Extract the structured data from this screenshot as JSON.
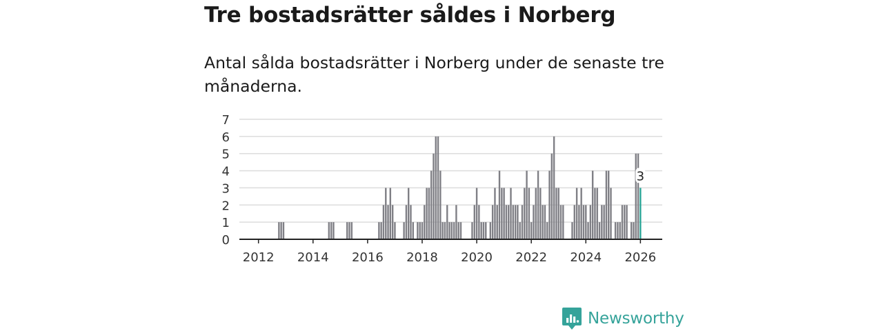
{
  "header": {
    "title": "Tre bostadsrätter såldes i Norberg",
    "subtitle": "Antal sålda bostadsrätter i Norberg under de senaste tre månaderna."
  },
  "brand": {
    "name": "Newsworthy"
  },
  "colors": {
    "bar": "#7f7f85",
    "highlight": "#2aa597",
    "grid": "#dcdcdc",
    "axis": "#222222",
    "brand": "#35a39a"
  },
  "chart_data": {
    "type": "bar",
    "title": "Tre bostadsrätter såldes i Norberg",
    "subtitle": "Antal sålda bostadsrätter i Norberg under de senaste tre månaderna.",
    "xlabel": "",
    "ylabel": "",
    "x_unit": "rolling 3-month window, ending month",
    "ylim": [
      0,
      7
    ],
    "xlim": [
      2011.3,
      2026.8
    ],
    "y_ticks": [
      0,
      1,
      2,
      3,
      4,
      5,
      6,
      7
    ],
    "x_ticks": [
      2012,
      2014,
      2016,
      2018,
      2020,
      2022,
      2024,
      2026
    ],
    "grid": true,
    "highlight": {
      "x": 2026.0,
      "value": 3,
      "label": "3"
    },
    "x": [
      2012.75,
      2012.833,
      2012.917,
      2014.583,
      2014.667,
      2014.75,
      2015.25,
      2015.333,
      2015.417,
      2016.417,
      2016.5,
      2016.583,
      2016.667,
      2016.75,
      2016.833,
      2016.917,
      2017.0,
      2017.083,
      2017.333,
      2017.417,
      2017.5,
      2017.583,
      2017.667,
      2017.833,
      2017.917,
      2018.0,
      2018.083,
      2018.167,
      2018.25,
      2018.333,
      2018.417,
      2018.5,
      2018.583,
      2018.667,
      2018.75,
      2018.833,
      2018.917,
      2019.0,
      2019.083,
      2019.167,
      2019.25,
      2019.333,
      2019.417,
      2019.5,
      2019.833,
      2019.917,
      2020.0,
      2020.083,
      2020.167,
      2020.25,
      2020.333,
      2020.5,
      2020.583,
      2020.667,
      2020.75,
      2020.833,
      2020.917,
      2021.0,
      2021.083,
      2021.167,
      2021.25,
      2021.333,
      2021.417,
      2021.5,
      2021.583,
      2021.667,
      2021.75,
      2021.833,
      2021.917,
      2022.0,
      2022.083,
      2022.167,
      2022.25,
      2022.333,
      2022.417,
      2022.5,
      2022.583,
      2022.667,
      2022.75,
      2022.833,
      2022.917,
      2023.0,
      2023.083,
      2023.167,
      2023.5,
      2023.583,
      2023.667,
      2023.75,
      2023.833,
      2023.917,
      2024.0,
      2024.083,
      2024.167,
      2024.25,
      2024.333,
      2024.417,
      2024.5,
      2024.583,
      2024.667,
      2024.75,
      2024.833,
      2024.917,
      2025.083,
      2025.167,
      2025.25,
      2025.333,
      2025.417,
      2025.5,
      2025.667,
      2025.75,
      2025.833,
      2025.917,
      2026.0
    ],
    "values": [
      1,
      1,
      1,
      1,
      1,
      1,
      1,
      1,
      1,
      1,
      1,
      2,
      3,
      2,
      3,
      2,
      1,
      0,
      1,
      2,
      3,
      2,
      1,
      1,
      1,
      1,
      2,
      3,
      3,
      4,
      5,
      6,
      6,
      4,
      1,
      1,
      2,
      1,
      1,
      1,
      2,
      1,
      1,
      0,
      1,
      2,
      3,
      2,
      1,
      1,
      1,
      1,
      2,
      3,
      2,
      4,
      3,
      3,
      2,
      2,
      3,
      2,
      2,
      2,
      1,
      2,
      3,
      4,
      3,
      1,
      2,
      3,
      4,
      3,
      2,
      2,
      1,
      4,
      5,
      6,
      3,
      3,
      2,
      2,
      1,
      2,
      3,
      2,
      3,
      2,
      2,
      1,
      2,
      4,
      3,
      3,
      1,
      2,
      2,
      4,
      4,
      3,
      1,
      1,
      1,
      2,
      2,
      2,
      1,
      1,
      5,
      5,
      3
    ]
  }
}
